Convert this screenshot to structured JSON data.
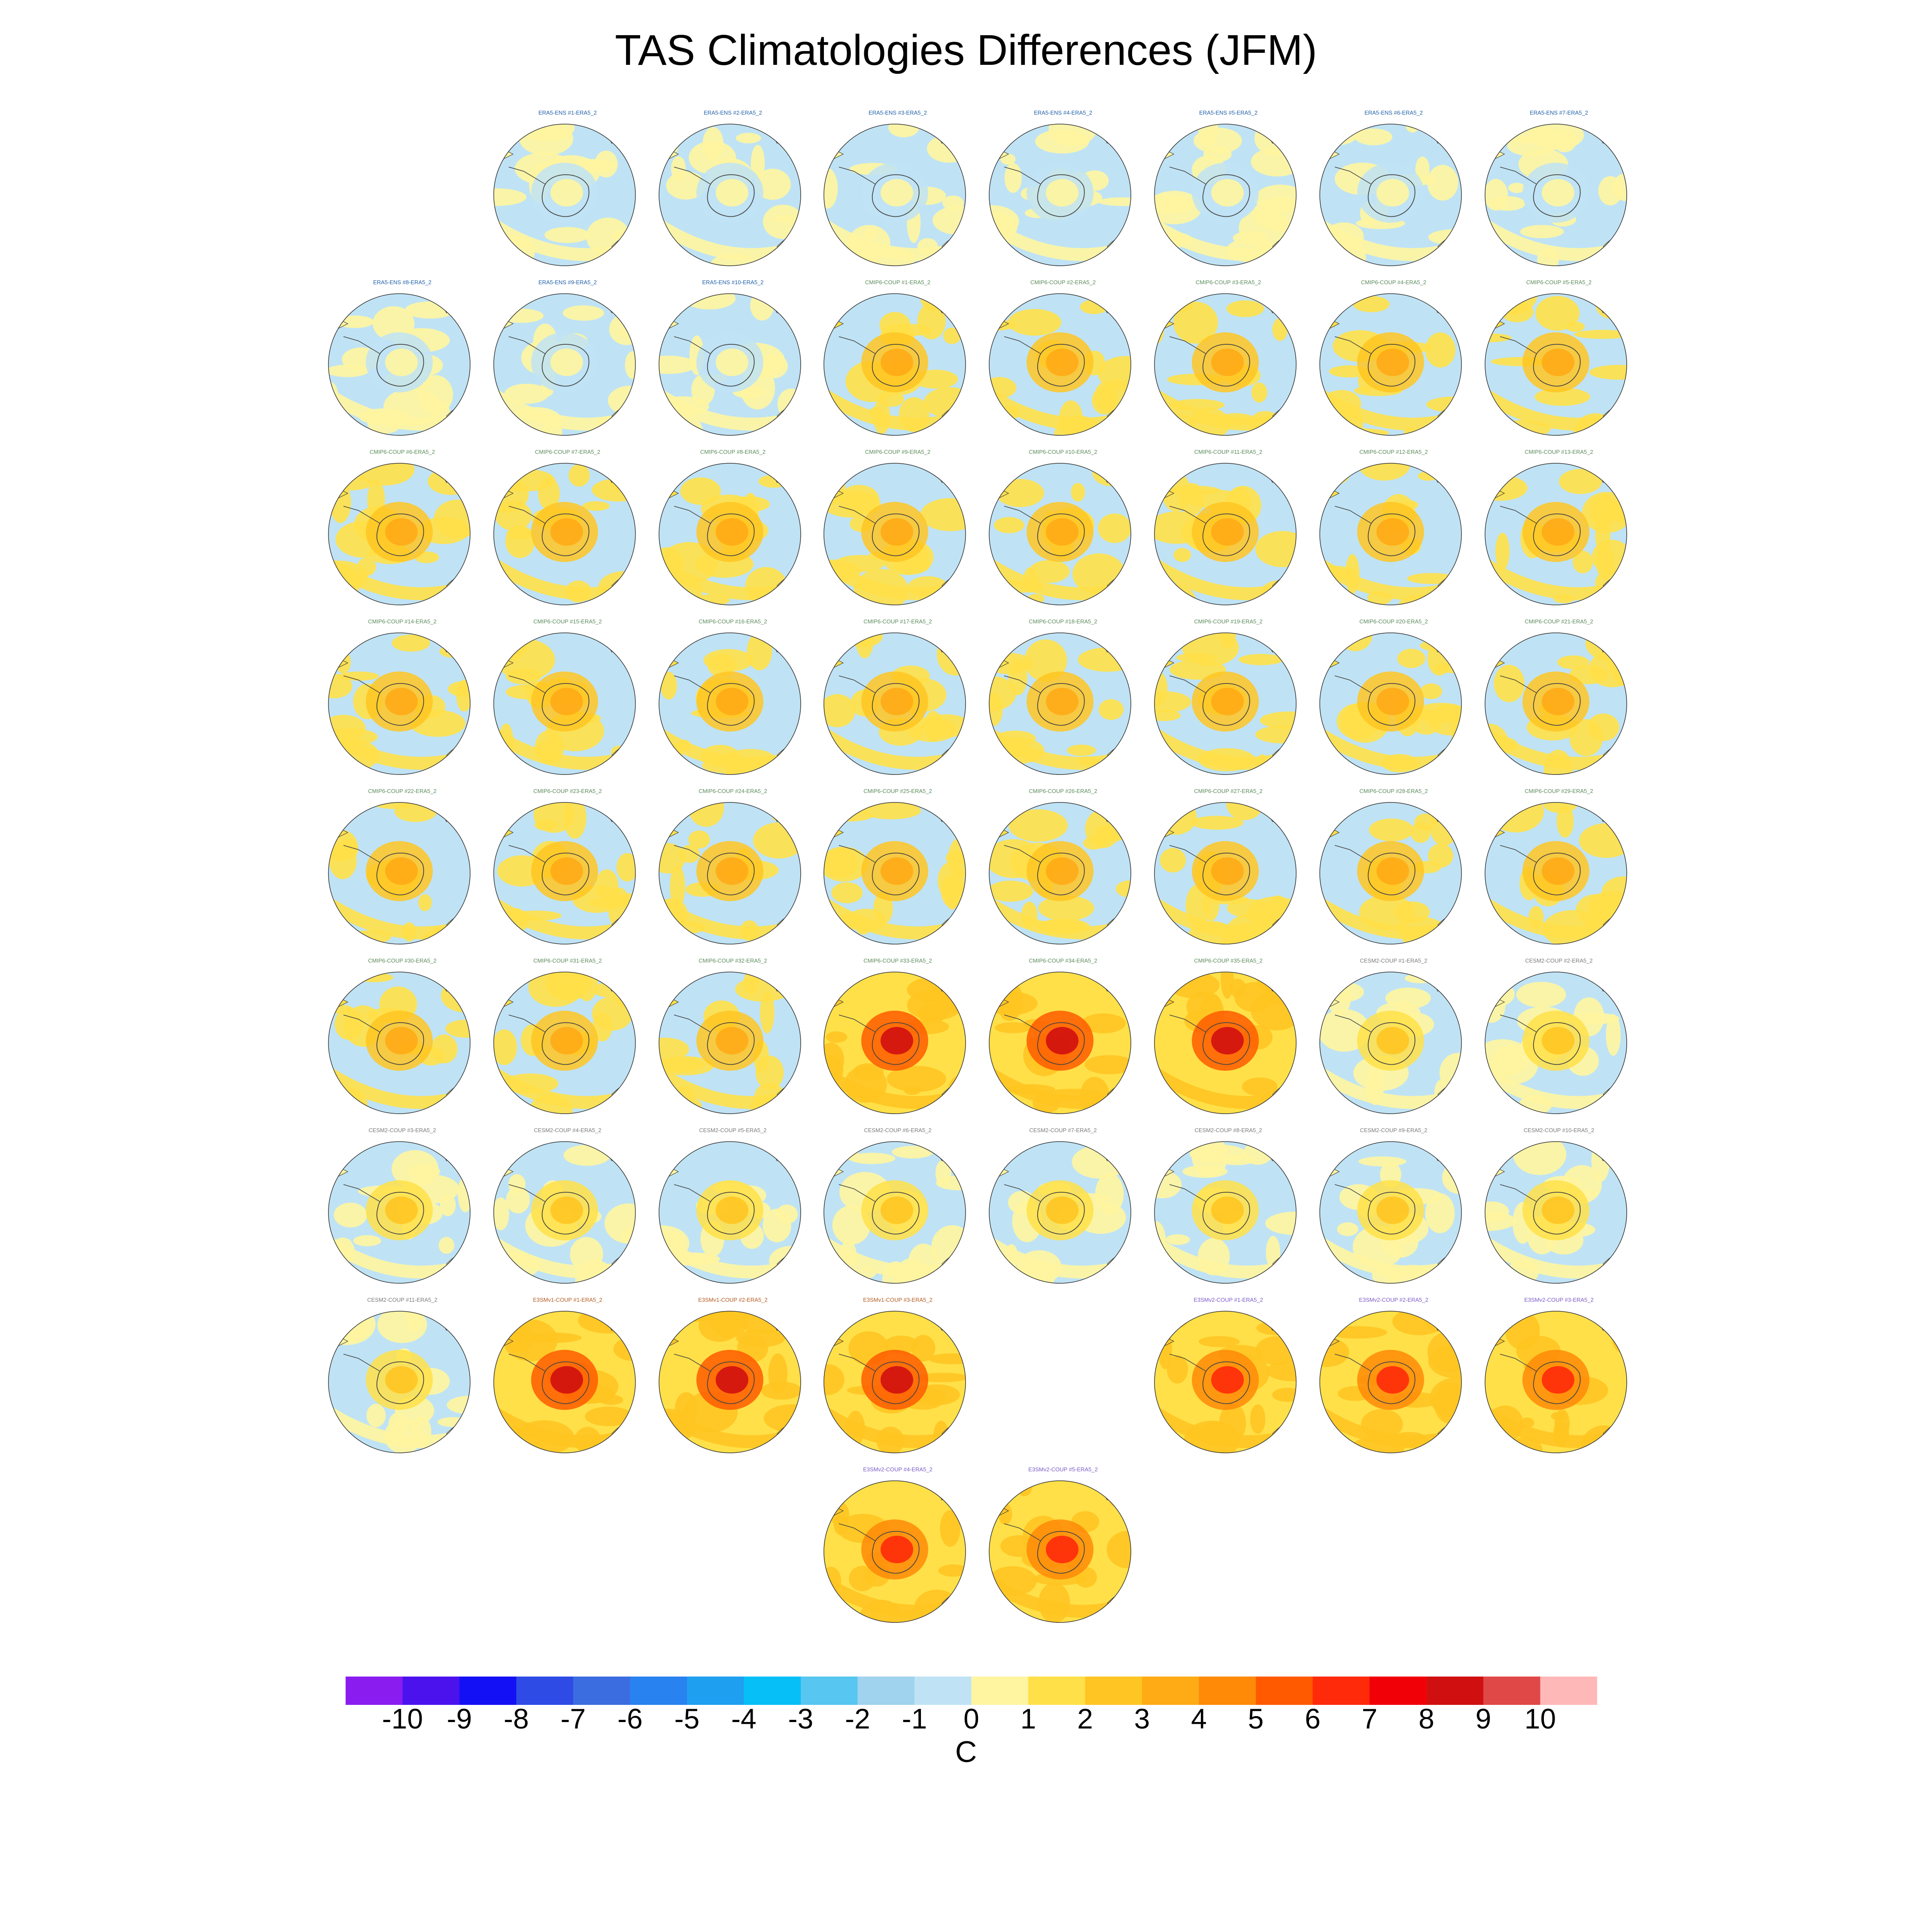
{
  "title": "TAS Climatologies Differences (JFM)",
  "colorbar": {
    "unit": "C",
    "tick_labels": [
      "-10",
      "-9",
      "-8",
      "-7",
      "-6",
      "-5",
      "-4",
      "-3",
      "-2",
      "-1",
      "0",
      "1",
      "2",
      "3",
      "4",
      "5",
      "6",
      "7",
      "8",
      "9",
      "10"
    ],
    "bin_colors": [
      "#8a1cf0",
      "#4b12ee",
      "#1410f5",
      "#2f4be6",
      "#3b6de0",
      "#2882f0",
      "#1e9ff0",
      "#06bff7",
      "#57c6f1",
      "#9fd3ee",
      "#bfe3f5",
      "#fff5a0",
      "#ffe048",
      "#ffc522",
      "#ffab16",
      "#ff8a08",
      "#ff5a00",
      "#ff2a0a",
      "#f20008",
      "#d01010",
      "#e04848",
      "#ffb8b8"
    ]
  },
  "panel_titles": [
    {
      "row": 0,
      "col": 1,
      "label": "ERA5-ENS   #1-ERA5_2",
      "group": "era5"
    },
    {
      "row": 0,
      "col": 2,
      "label": "ERA5-ENS   #2-ERA5_2",
      "group": "era5"
    },
    {
      "row": 0,
      "col": 3,
      "label": "ERA5-ENS   #3-ERA5_2",
      "group": "era5"
    },
    {
      "row": 0,
      "col": 4,
      "label": "ERA5-ENS   #4-ERA5_2",
      "group": "era5"
    },
    {
      "row": 0,
      "col": 5,
      "label": "ERA5-ENS   #5-ERA5_2",
      "group": "era5"
    },
    {
      "row": 0,
      "col": 6,
      "label": "ERA5-ENS   #6-ERA5_2",
      "group": "era5"
    },
    {
      "row": 0,
      "col": 7,
      "label": "ERA5-ENS   #7-ERA5_2",
      "group": "era5"
    },
    {
      "row": 1,
      "col": 0,
      "label": "ERA5-ENS   #8-ERA5_2",
      "group": "era5"
    },
    {
      "row": 1,
      "col": 1,
      "label": "ERA5-ENS   #9-ERA5_2",
      "group": "era5"
    },
    {
      "row": 1,
      "col": 2,
      "label": "ERA5-ENS  #10-ERA5_2",
      "group": "era5"
    },
    {
      "row": 1,
      "col": 3,
      "label": "CMIP6-COUP  #1-ERA5_2",
      "group": "cmip6"
    },
    {
      "row": 1,
      "col": 4,
      "label": "CMIP6-COUP  #2-ERA5_2",
      "group": "cmip6"
    },
    {
      "row": 1,
      "col": 5,
      "label": "CMIP6-COUP  #3-ERA5_2",
      "group": "cmip6"
    },
    {
      "row": 1,
      "col": 6,
      "label": "CMIP6-COUP  #4-ERA5_2",
      "group": "cmip6"
    },
    {
      "row": 1,
      "col": 7,
      "label": "CMIP6-COUP  #5-ERA5_2",
      "group": "cmip6"
    },
    {
      "row": 2,
      "col": 0,
      "label": "CMIP6-COUP  #6-ERA5_2",
      "group": "cmip6"
    },
    {
      "row": 2,
      "col": 1,
      "label": "CMIP6-COUP  #7-ERA5_2",
      "group": "cmip6"
    },
    {
      "row": 2,
      "col": 2,
      "label": "CMIP6-COUP  #8-ERA5_2",
      "group": "cmip6"
    },
    {
      "row": 2,
      "col": 3,
      "label": "CMIP6-COUP  #9-ERA5_2",
      "group": "cmip6"
    },
    {
      "row": 2,
      "col": 4,
      "label": "CMIP6-COUP  #10-ERA5_2",
      "group": "cmip6"
    },
    {
      "row": 2,
      "col": 5,
      "label": "CMIP6-COUP  #11-ERA5_2",
      "group": "cmip6"
    },
    {
      "row": 2,
      "col": 6,
      "label": "CMIP6-COUP  #12-ERA5_2",
      "group": "cmip6"
    },
    {
      "row": 2,
      "col": 7,
      "label": "CMIP6-COUP  #13-ERA5_2",
      "group": "cmip6"
    },
    {
      "row": 3,
      "col": 0,
      "label": "CMIP6-COUP  #14-ERA5_2",
      "group": "cmip6"
    },
    {
      "row": 3,
      "col": 1,
      "label": "CMIP6-COUP  #15-ERA5_2",
      "group": "cmip6"
    },
    {
      "row": 3,
      "col": 2,
      "label": "CMIP6-COUP  #16-ERA5_2",
      "group": "cmip6"
    },
    {
      "row": 3,
      "col": 3,
      "label": "CMIP6-COUP  #17-ERA5_2",
      "group": "cmip6"
    },
    {
      "row": 3,
      "col": 4,
      "label": "CMIP6-COUP  #18-ERA5_2",
      "group": "cmip6"
    },
    {
      "row": 3,
      "col": 5,
      "label": "CMIP6-COUP  #19-ERA5_2",
      "group": "cmip6"
    },
    {
      "row": 3,
      "col": 6,
      "label": "CMIP6-COUP  #20-ERA5_2",
      "group": "cmip6"
    },
    {
      "row": 3,
      "col": 7,
      "label": "CMIP6-COUP  #21-ERA5_2",
      "group": "cmip6"
    },
    {
      "row": 4,
      "col": 0,
      "label": "CMIP6-COUP  #22-ERA5_2",
      "group": "cmip6"
    },
    {
      "row": 4,
      "col": 1,
      "label": "CMIP6-COUP  #23-ERA5_2",
      "group": "cmip6"
    },
    {
      "row": 4,
      "col": 2,
      "label": "CMIP6-COUP  #24-ERA5_2",
      "group": "cmip6"
    },
    {
      "row": 4,
      "col": 3,
      "label": "CMIP6-COUP  #25-ERA5_2",
      "group": "cmip6"
    },
    {
      "row": 4,
      "col": 4,
      "label": "CMIP6-COUP  #26-ERA5_2",
      "group": "cmip6"
    },
    {
      "row": 4,
      "col": 5,
      "label": "CMIP6-COUP  #27-ERA5_2",
      "group": "cmip6"
    },
    {
      "row": 4,
      "col": 6,
      "label": "CMIP6-COUP  #28-ERA5_2",
      "group": "cmip6"
    },
    {
      "row": 4,
      "col": 7,
      "label": "CMIP6-COUP  #29-ERA5_2",
      "group": "cmip6"
    },
    {
      "row": 5,
      "col": 0,
      "label": "CMIP6-COUP  #30-ERA5_2",
      "group": "cmip6"
    },
    {
      "row": 5,
      "col": 1,
      "label": "CMIP6-COUP  #31-ERA5_2",
      "group": "cmip6"
    },
    {
      "row": 5,
      "col": 2,
      "label": "CMIP6-COUP  #32-ERA5_2",
      "group": "cmip6"
    },
    {
      "row": 5,
      "col": 3,
      "label": "CMIP6-COUP  #33-ERA5_2",
      "group": "cmip6"
    },
    {
      "row": 5,
      "col": 4,
      "label": "CMIP6-COUP  #34-ERA5_2",
      "group": "cmip6"
    },
    {
      "row": 5,
      "col": 5,
      "label": "CMIP6-COUP  #35-ERA5_2",
      "group": "cmip6"
    },
    {
      "row": 5,
      "col": 6,
      "label": "CESM2-COUP  #1-ERA5_2",
      "group": "cesm2"
    },
    {
      "row": 5,
      "col": 7,
      "label": "CESM2-COUP  #2-ERA5_2",
      "group": "cesm2"
    },
    {
      "row": 6,
      "col": 0,
      "label": "CESM2-COUP  #3-ERA5_2",
      "group": "cesm2"
    },
    {
      "row": 6,
      "col": 1,
      "label": "CESM2-COUP  #4-ERA5_2",
      "group": "cesm2"
    },
    {
      "row": 6,
      "col": 2,
      "label": "CESM2-COUP  #5-ERA5_2",
      "group": "cesm2"
    },
    {
      "row": 6,
      "col": 3,
      "label": "CESM2-COUP  #6-ERA5_2",
      "group": "cesm2"
    },
    {
      "row": 6,
      "col": 4,
      "label": "CESM2-COUP  #7-ERA5_2",
      "group": "cesm2"
    },
    {
      "row": 6,
      "col": 5,
      "label": "CESM2-COUP  #8-ERA5_2",
      "group": "cesm2"
    },
    {
      "row": 6,
      "col": 6,
      "label": "CESM2-COUP  #9-ERA5_2",
      "group": "cesm2"
    },
    {
      "row": 6,
      "col": 7,
      "label": "CESM2-COUP  #10-ERA5_2",
      "group": "cesm2"
    },
    {
      "row": 7,
      "col": 0,
      "label": "CESM2-COUP  #11-ERA5_2",
      "group": "cesm2"
    },
    {
      "row": 7,
      "col": 1,
      "label": "E3SMv1-COUP #1-ERA5_2",
      "group": "e3smv1"
    },
    {
      "row": 7,
      "col": 2,
      "label": "E3SMv1-COUP #2-ERA5_2",
      "group": "e3smv1"
    },
    {
      "row": 7,
      "col": 3,
      "label": "E3SMv1-COUP #3-ERA5_2",
      "group": "e3smv1"
    },
    {
      "row": 7,
      "col": 5,
      "label": "E3SMv2-COUP #1-ERA5_2",
      "group": "e3smv2"
    },
    {
      "row": 7,
      "col": 6,
      "label": "E3SMv2-COUP #2-ERA5_2",
      "group": "e3smv2"
    },
    {
      "row": 7,
      "col": 7,
      "label": "E3SMv2-COUP #3-ERA5_2",
      "group": "e3smv2"
    },
    {
      "row": 8,
      "col": 3,
      "label": "E3SMv2-COUP #4-ERA5_2",
      "group": "e3smv2"
    },
    {
      "row": 8,
      "col": 4,
      "label": "E3SMv2-COUP #5-ERA5_2",
      "group": "e3smv2"
    }
  ],
  "group_styles": {
    "era5": {
      "ocean": "#bfe3f5",
      "patch": "#fff5a0",
      "center": "#bfe3f5",
      "warm_spot": "#fff5a0"
    },
    "cmip6": {
      "ocean": "#bfe3f5",
      "patch": "#ffe048",
      "center": "#ffc522",
      "warm_spot": "#ffab16"
    },
    "cesm2": {
      "ocean": "#bfe3f5",
      "patch": "#fff5a0",
      "center": "#ffe048",
      "warm_spot": "#ffc522"
    },
    "e3smv1": {
      "ocean": "#ffe048",
      "patch": "#ffc522",
      "center": "#ff5a00",
      "warm_spot": "#d01010"
    },
    "e3smv2": {
      "ocean": "#ffe048",
      "patch": "#ffc522",
      "center": "#ff8a08",
      "warm_spot": "#ff2a0a"
    },
    "hot": {
      "ocean": "#ffe048",
      "patch": "#ffc522",
      "center": "#ff5a00",
      "warm_spot": "#d01010"
    }
  },
  "hot_panels": [
    "CMIP6-COUP  #33-ERA5_2",
    "CMIP6-COUP  #34-ERA5_2",
    "CMIP6-COUP  #35-ERA5_2"
  ]
}
